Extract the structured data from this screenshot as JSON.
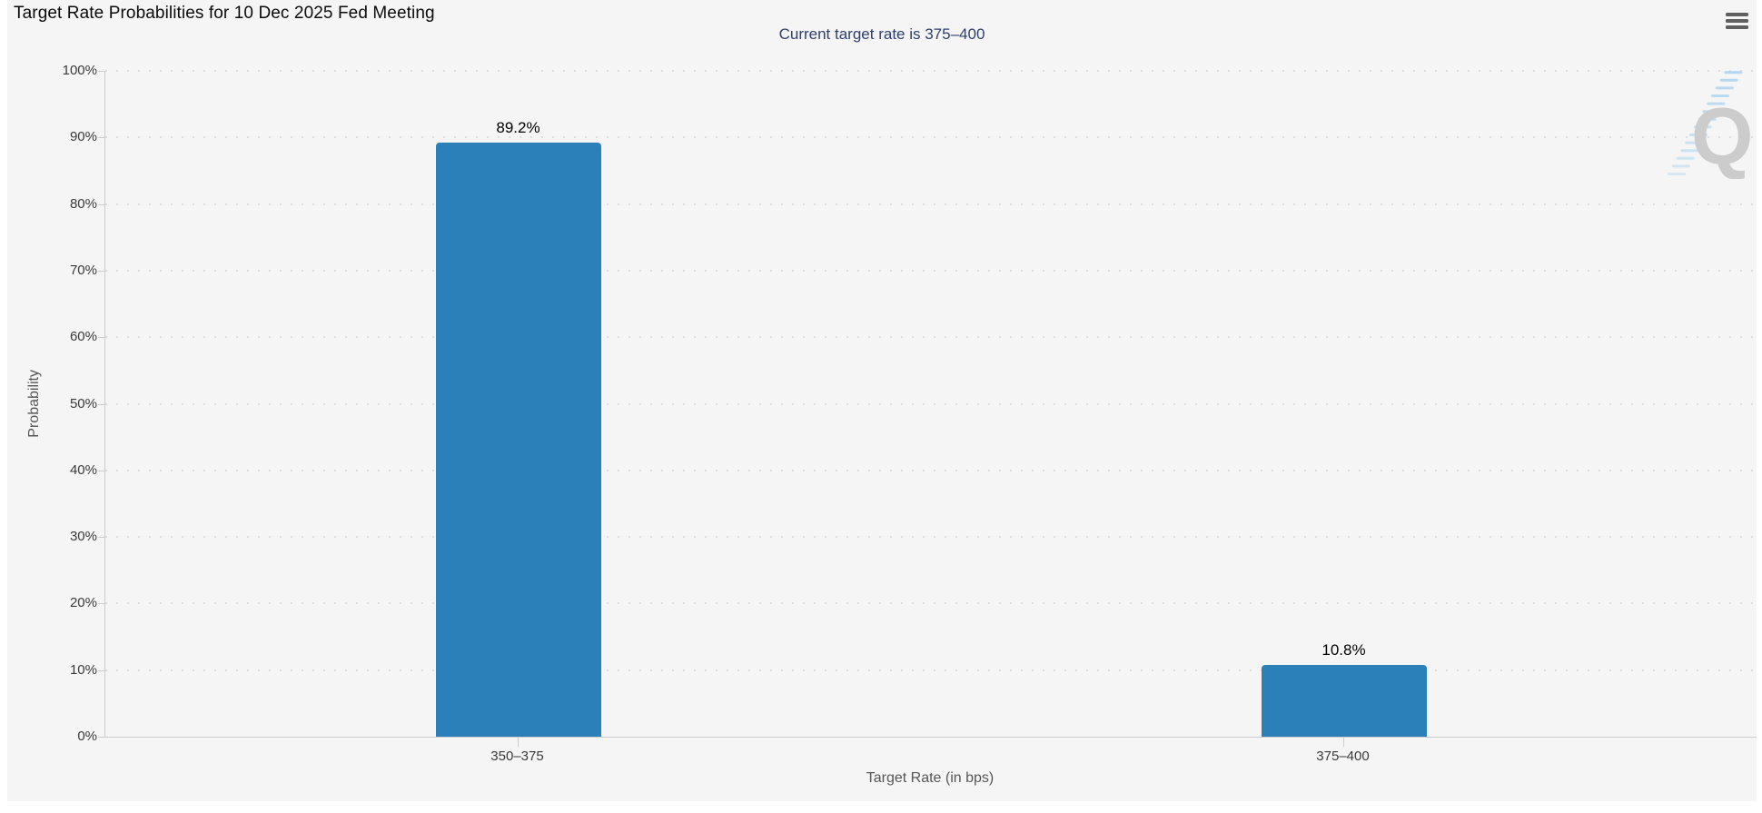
{
  "chart_data": {
    "type": "bar",
    "title": "Target Rate Probabilities for 10 Dec 2025 Fed Meeting",
    "subtitle": "Current target rate is 375–400",
    "categories": [
      "350–375",
      "375–400"
    ],
    "values": [
      89.2,
      10.8
    ],
    "data_labels": [
      "89.2%",
      "10.8%"
    ],
    "xlabel": "Target Rate (in bps)",
    "ylabel": "Probability",
    "ylim": [
      0,
      100
    ],
    "ytick_step": 10,
    "ytick_labels": [
      "0%",
      "10%",
      "20%",
      "30%",
      "40%",
      "50%",
      "60%",
      "70%",
      "80%",
      "90%",
      "100%"
    ],
    "grid": "dotted-horizontal",
    "legend": "none",
    "bar_color": "#2b80ba"
  },
  "toolbar": {
    "menu_icon": "hamburger-menu-icon"
  },
  "watermark": {
    "letter": "Q",
    "style": "quikstrike-logo",
    "letter_color": "#c8c8c8",
    "dash_color": "#a9d3ef"
  },
  "colors": {
    "page_background": "#ffffff",
    "chart_background": "#f5f5f6",
    "title_text": "#0b0b0b",
    "subtitle_text": "#2e3f6e",
    "axis_line": "#cccccc",
    "gridline": "#dcdcdc",
    "tick_label": "#3a3a3a",
    "axis_title": "#565656",
    "menu_icon": "#5f5f5f"
  }
}
